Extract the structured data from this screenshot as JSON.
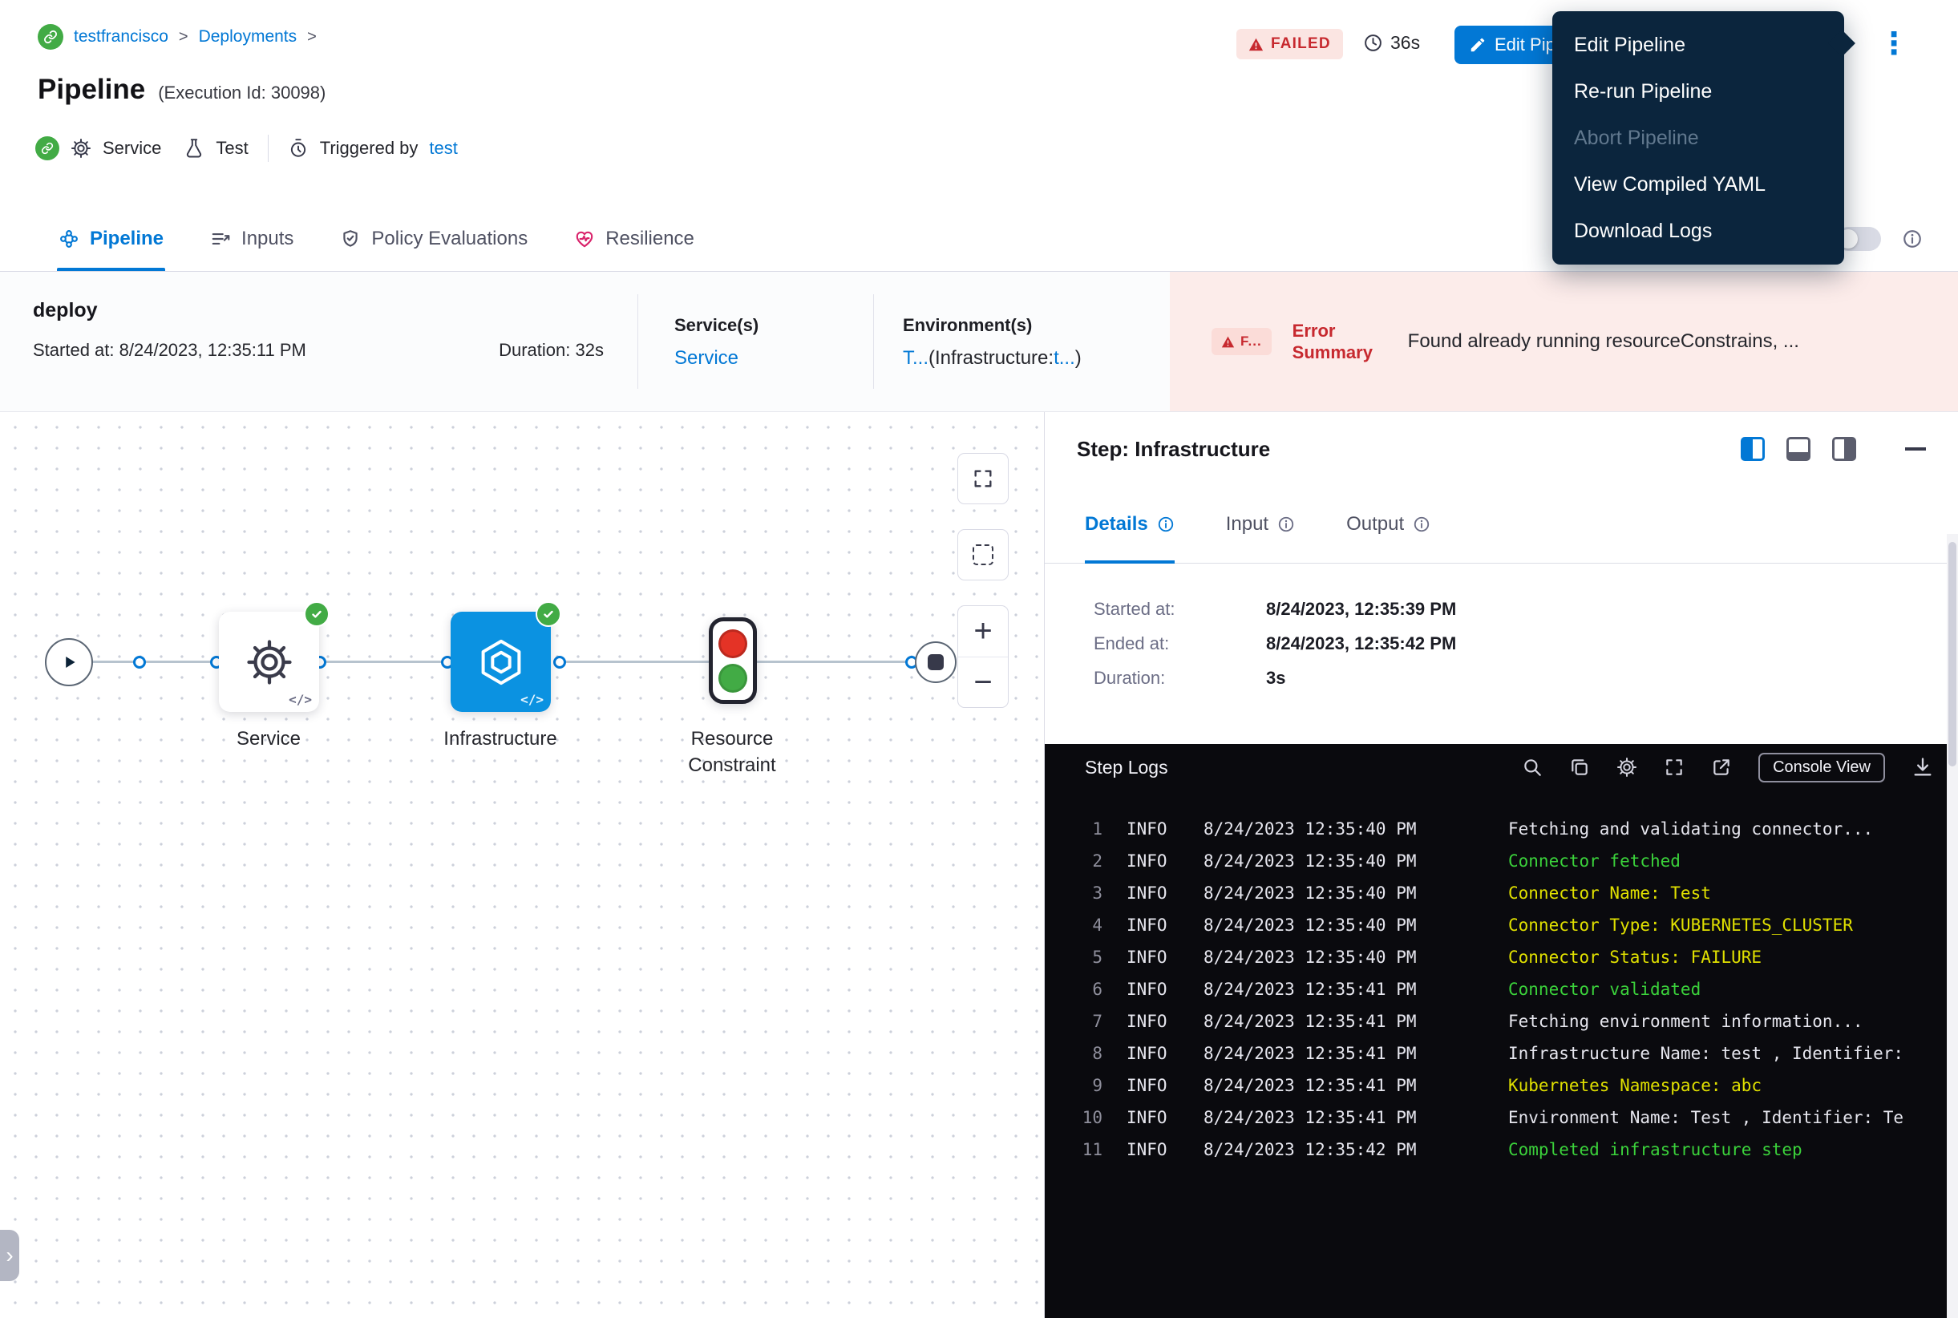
{
  "colors": {
    "accent": "#0278d5",
    "success": "#42ab45",
    "error_text": "#c7292f",
    "error_bg": "#fbe5e2",
    "node_blue": "#0b92e1",
    "menu_bg": "#0b253d",
    "log_green": "#3bd23b",
    "log_yellow": "#e0e000",
    "log_plain": "#e6e6ee",
    "resilience_pink": "#d9246c",
    "traffic_red": "#e43326"
  },
  "icons": {
    "kebab": "⋮",
    "plus": "+",
    "minus": "−",
    "chevron": "›"
  },
  "breadcrumb": {
    "project": "testfrancisco",
    "section": "Deployments",
    "separator": ">"
  },
  "header": {
    "title": "Pipeline",
    "execution_id": "(Execution Id: 30098)",
    "service_label": "Service",
    "test_label": "Test",
    "triggered_by_label": "Triggered by",
    "triggered_by_user": "test",
    "status_badge": "FAILED",
    "total_duration": "36s",
    "edit_button": "Edit Pipeline"
  },
  "menu": {
    "items": [
      {
        "label": "Edit Pipeline",
        "disabled": false
      },
      {
        "label": "Re-run Pipeline",
        "disabled": false
      },
      {
        "label": "Abort Pipeline",
        "disabled": true
      },
      {
        "label": "View Compiled YAML",
        "disabled": false
      },
      {
        "label": "Download Logs",
        "disabled": false
      }
    ]
  },
  "tabs": [
    {
      "label": "Pipeline",
      "active": true
    },
    {
      "label": "Inputs",
      "active": false
    },
    {
      "label": "Policy Evaluations",
      "active": false
    },
    {
      "label": "Resilience",
      "active": false
    }
  ],
  "summary": {
    "stage_name": "deploy",
    "started_label": "Started at:",
    "started_value": "8/24/2023, 12:35:11 PM",
    "duration_label": "Duration:",
    "duration_value": "32s",
    "services_label": "Service(s)",
    "services_value": "Service",
    "environments_label": "Environment(s)",
    "environment_value": "T...",
    "environment_infra_label": "(Infrastructure:",
    "environment_infra_value": "t...",
    "environment_close": ")",
    "error_chip": "F...",
    "error_label": "Error Summary",
    "error_message": "Found already running resourceConstrains, ..."
  },
  "graph": {
    "code_glyph": "</>",
    "nodes": [
      {
        "label": "Service"
      },
      {
        "label": "Infrastructure"
      },
      {
        "label": "Resource Constraint"
      }
    ]
  },
  "step_panel": {
    "title": "Step: Infrastructure",
    "tabs": [
      {
        "label": "Details",
        "active": true
      },
      {
        "label": "Input",
        "active": false
      },
      {
        "label": "Output",
        "active": false
      }
    ],
    "details": [
      {
        "label": "Started at:",
        "value": "8/24/2023, 12:35:39 PM"
      },
      {
        "label": "Ended at:",
        "value": "8/24/2023, 12:35:42 PM"
      },
      {
        "label": "Duration:",
        "value": "3s"
      }
    ],
    "logs": {
      "title": "Step Logs",
      "console_view_label": "Console View",
      "lines": [
        {
          "num": "1",
          "level": "INFO",
          "time": "8/24/2023 12:35:40 PM",
          "message": "Fetching and validating connector...",
          "color": "plain"
        },
        {
          "num": "2",
          "level": "INFO",
          "time": "8/24/2023 12:35:40 PM",
          "message": "Connector fetched",
          "color": "green"
        },
        {
          "num": "3",
          "level": "INFO",
          "time": "8/24/2023 12:35:40 PM",
          "message": "Connector Name: Test",
          "color": "yellow"
        },
        {
          "num": "4",
          "level": "INFO",
          "time": "8/24/2023 12:35:40 PM",
          "message": "Connector Type: KUBERNETES_CLUSTER",
          "color": "yellow"
        },
        {
          "num": "5",
          "level": "INFO",
          "time": "8/24/2023 12:35:40 PM",
          "message": "Connector Status: FAILURE",
          "color": "yellow"
        },
        {
          "num": "6",
          "level": "INFO",
          "time": "8/24/2023 12:35:41 PM",
          "message": "Connector validated",
          "color": "green"
        },
        {
          "num": "7",
          "level": "INFO",
          "time": "8/24/2023 12:35:41 PM",
          "message": "Fetching environment information...",
          "color": "plain"
        },
        {
          "num": "8",
          "level": "INFO",
          "time": "8/24/2023 12:35:41 PM",
          "message": "Infrastructure Name: test , Identifier:",
          "color": "plain"
        },
        {
          "num": "9",
          "level": "INFO",
          "time": "8/24/2023 12:35:41 PM",
          "message": "Kubernetes Namespace: abc",
          "color": "yellow"
        },
        {
          "num": "10",
          "level": "INFO",
          "time": "8/24/2023 12:35:41 PM",
          "message": "Environment Name: Test , Identifier: Te",
          "color": "plain"
        },
        {
          "num": "11",
          "level": "INFO",
          "time": "8/24/2023 12:35:42 PM",
          "message": "Completed infrastructure step",
          "color": "green"
        }
      ]
    }
  }
}
